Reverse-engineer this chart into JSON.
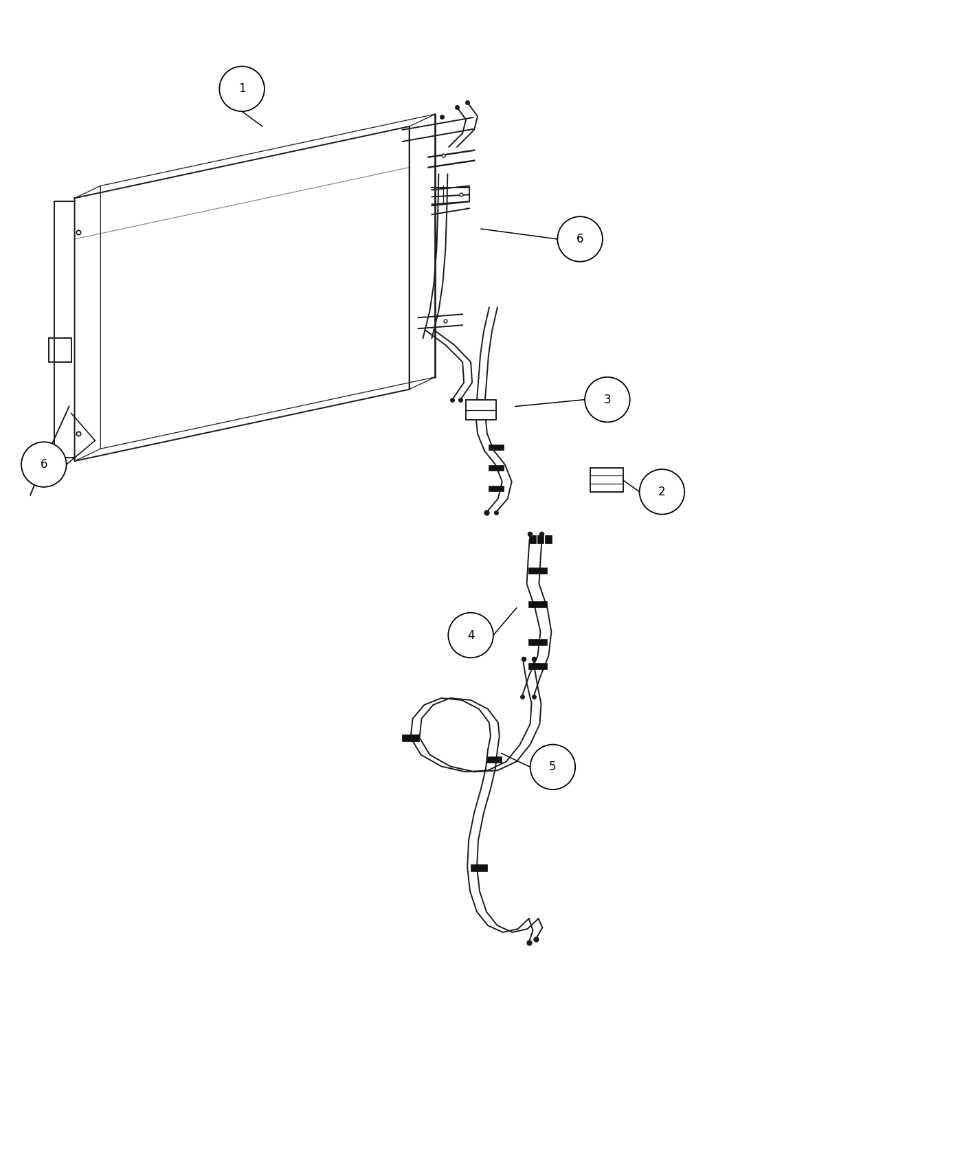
{
  "bg_color": "#ffffff",
  "line_color": "#1a1a1a",
  "lw_main": 1.4,
  "lw_thin": 0.9,
  "lw_thick": 2.0,
  "callout_r": 0.32,
  "callout_fs": 12,
  "figsize": [
    14,
    17
  ],
  "xlim": [
    0,
    14
  ],
  "ylim": [
    0,
    17
  ]
}
